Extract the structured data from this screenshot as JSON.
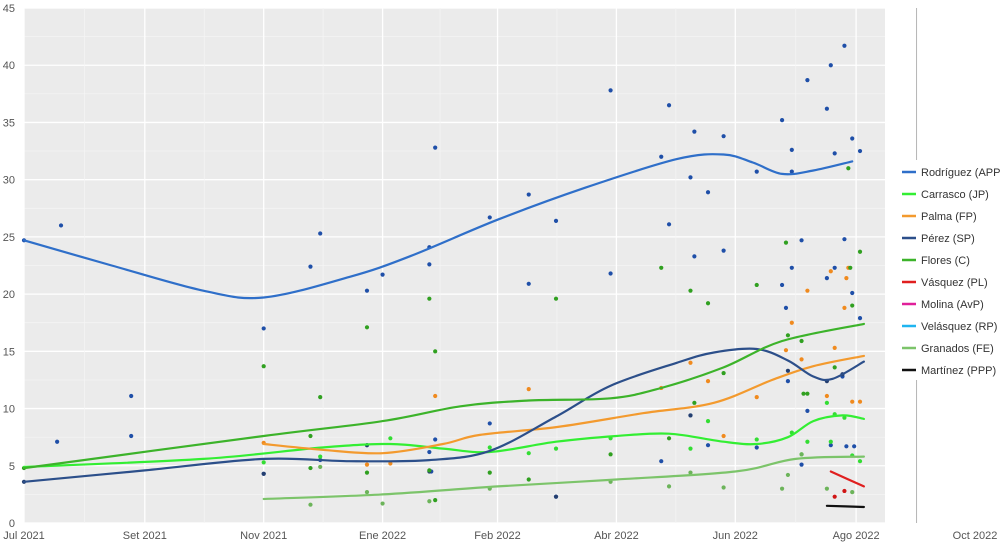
{
  "chart_data": {
    "type": "scatter",
    "title": "",
    "xlabel": "",
    "ylabel": "",
    "ylim": [
      0,
      45
    ],
    "xlim": [
      "2021-07-01",
      "2022-10-01"
    ],
    "grid": true,
    "legend_position": "right",
    "x_tick_labels": [
      "Jul 2021",
      "Set 2021",
      "Nov 2021",
      "Ene 2022",
      "Feb 2022",
      "Abr 2022",
      "Jun 2022",
      "Ago 2022",
      "Oct 2022"
    ],
    "x_tick_dates": [
      "2021-07-01",
      "2021-09-01",
      "2021-11-01",
      "2022-01-01",
      "2022-03-01",
      "2022-05-01",
      "2022-07-01",
      "2022-09-01",
      "2022-11-01"
    ],
    "y_tick_labels": [
      "0",
      "5",
      "10",
      "15",
      "20",
      "25",
      "30",
      "35",
      "40",
      "45"
    ],
    "y_ticks": [
      0,
      5,
      10,
      15,
      20,
      25,
      30,
      35,
      40,
      45
    ],
    "reference_line_date": "2022-10-02",
    "series": [
      {
        "name": "Rodríguez (APP)",
        "color": "#2f6fc9",
        "dot_color": "#1f4fa8",
        "trend": [
          [
            "2021-07-01",
            24.7
          ],
          [
            "2021-08-15",
            22.5
          ],
          [
            "2021-10-01",
            20.3
          ],
          [
            "2021-11-01",
            19.7
          ],
          [
            "2021-12-15",
            21.5
          ],
          [
            "2022-01-15",
            23.3
          ],
          [
            "2022-03-01",
            26.5
          ],
          [
            "2022-04-15",
            29.3
          ],
          [
            "2022-06-01",
            31.8
          ],
          [
            "2022-06-25",
            32.2
          ],
          [
            "2022-07-10",
            31.5
          ],
          [
            "2022-07-25",
            30.5
          ],
          [
            "2022-08-10",
            30.8
          ],
          [
            "2022-08-30",
            31.6
          ]
        ],
        "points": [
          [
            "2021-07-01",
            24.7
          ],
          [
            "2021-07-20",
            26.0
          ],
          [
            "2021-07-18",
            7.1
          ],
          [
            "2021-08-25",
            11.1
          ],
          [
            "2021-08-25",
            7.6
          ],
          [
            "2021-11-01",
            17.0
          ],
          [
            "2021-11-01",
            4.3
          ],
          [
            "2021-11-25",
            22.4
          ],
          [
            "2021-11-30",
            25.3
          ],
          [
            "2021-11-30",
            5.5
          ],
          [
            "2021-12-24",
            20.3
          ],
          [
            "2021-12-24",
            6.8
          ],
          [
            "2022-01-01",
            21.7
          ],
          [
            "2022-01-25",
            24.1
          ],
          [
            "2022-01-25",
            22.6
          ],
          [
            "2022-01-25",
            6.2
          ],
          [
            "2022-01-28",
            32.8
          ],
          [
            "2022-01-28",
            7.3
          ],
          [
            "2022-01-26",
            4.5
          ],
          [
            "2022-02-25",
            8.7
          ],
          [
            "2022-02-25",
            26.7
          ],
          [
            "2022-03-17",
            28.7
          ],
          [
            "2022-03-17",
            20.9
          ],
          [
            "2022-03-31",
            26.4
          ],
          [
            "2022-03-31",
            2.3
          ],
          [
            "2022-04-28",
            37.8
          ],
          [
            "2022-04-28",
            21.8
          ],
          [
            "2022-05-24",
            32.0
          ],
          [
            "2022-05-24",
            5.4
          ],
          [
            "2022-05-28",
            36.5
          ],
          [
            "2022-05-28",
            26.1
          ],
          [
            "2022-06-08",
            30.2
          ],
          [
            "2022-06-08",
            9.4
          ],
          [
            "2022-06-10",
            34.2
          ],
          [
            "2022-06-10",
            23.3
          ],
          [
            "2022-06-17",
            28.9
          ],
          [
            "2022-06-17",
            6.8
          ],
          [
            "2022-06-25",
            33.8
          ],
          [
            "2022-06-25",
            23.8
          ],
          [
            "2022-07-12",
            30.7
          ],
          [
            "2022-07-12",
            6.6
          ],
          [
            "2022-07-25",
            35.2
          ],
          [
            "2022-07-25",
            20.8
          ],
          [
            "2022-07-27",
            18.8
          ],
          [
            "2022-07-28",
            12.4
          ],
          [
            "2022-07-30",
            32.6
          ],
          [
            "2022-07-30",
            30.7
          ],
          [
            "2022-07-30",
            22.3
          ],
          [
            "2022-08-04",
            24.7
          ],
          [
            "2022-08-04",
            5.1
          ],
          [
            "2022-08-07",
            38.7
          ],
          [
            "2022-08-07",
            9.8
          ],
          [
            "2022-08-17",
            36.2
          ],
          [
            "2022-08-17",
            21.4
          ],
          [
            "2022-08-19",
            40.0
          ],
          [
            "2022-08-19",
            6.8
          ],
          [
            "2022-08-21",
            32.3
          ],
          [
            "2022-08-21",
            22.3
          ],
          [
            "2022-08-25",
            12.8
          ],
          [
            "2022-08-26",
            41.7
          ],
          [
            "2022-08-26",
            24.8
          ],
          [
            "2022-08-27",
            6.7
          ],
          [
            "2022-08-30",
            33.6
          ],
          [
            "2022-08-30",
            20.1
          ],
          [
            "2022-08-31",
            6.7
          ],
          [
            "2022-09-03",
            32.5
          ],
          [
            "2022-09-03",
            17.9
          ]
        ]
      },
      {
        "name": "Carrasco (JP)",
        "color": "#33ee33",
        "dot_color": "#33dd33",
        "trend": [
          [
            "2021-07-01",
            4.9
          ],
          [
            "2021-10-01",
            5.6
          ],
          [
            "2021-12-01",
            6.6
          ],
          [
            "2022-01-05",
            6.9
          ],
          [
            "2022-02-01",
            6.5
          ],
          [
            "2022-02-25",
            6.2
          ],
          [
            "2022-03-31",
            7.1
          ],
          [
            "2022-05-01",
            7.6
          ],
          [
            "2022-05-28",
            7.8
          ],
          [
            "2022-06-25",
            7.1
          ],
          [
            "2022-07-12",
            6.9
          ],
          [
            "2022-07-28",
            7.5
          ],
          [
            "2022-08-10",
            8.9
          ],
          [
            "2022-08-25",
            9.4
          ],
          [
            "2022-09-05",
            9.1
          ]
        ],
        "points": [
          [
            "2021-11-01",
            5.3
          ],
          [
            "2021-11-30",
            5.8
          ],
          [
            "2022-01-05",
            7.4
          ],
          [
            "2022-02-25",
            6.6
          ],
          [
            "2022-03-17",
            6.1
          ],
          [
            "2022-03-31",
            6.5
          ],
          [
            "2022-04-28",
            7.4
          ],
          [
            "2022-06-08",
            6.5
          ],
          [
            "2022-06-17",
            8.9
          ],
          [
            "2022-07-12",
            7.3
          ],
          [
            "2022-07-30",
            7.9
          ],
          [
            "2022-08-04",
            6.0
          ],
          [
            "2022-08-07",
            7.1
          ],
          [
            "2022-08-17",
            10.5
          ],
          [
            "2022-08-19",
            7.1
          ],
          [
            "2022-08-21",
            9.5
          ],
          [
            "2022-08-26",
            9.2
          ],
          [
            "2022-08-30",
            5.9
          ],
          [
            "2022-09-03",
            5.4
          ]
        ]
      },
      {
        "name": "Palma (FP)",
        "color": "#f39a2e",
        "dot_color": "#f08a1e",
        "trend": [
          [
            "2021-11-01",
            6.9
          ],
          [
            "2021-12-01",
            6.4
          ],
          [
            "2022-01-01",
            6.1
          ],
          [
            "2022-02-01",
            6.9
          ],
          [
            "2022-02-20",
            7.7
          ],
          [
            "2022-04-01",
            8.4
          ],
          [
            "2022-05-15",
            9.6
          ],
          [
            "2022-06-20",
            10.5
          ],
          [
            "2022-07-20",
            12.5
          ],
          [
            "2022-08-10",
            13.7
          ],
          [
            "2022-09-05",
            14.6
          ]
        ],
        "points": [
          [
            "2021-11-01",
            7.0
          ],
          [
            "2021-12-24",
            5.1
          ],
          [
            "2022-01-05",
            5.2
          ],
          [
            "2022-01-28",
            11.1
          ],
          [
            "2022-03-17",
            11.7
          ],
          [
            "2022-05-24",
            11.8
          ],
          [
            "2022-06-08",
            14.0
          ],
          [
            "2022-06-17",
            12.4
          ],
          [
            "2022-06-25",
            7.6
          ],
          [
            "2022-07-12",
            11.0
          ],
          [
            "2022-07-27",
            15.1
          ],
          [
            "2022-07-30",
            17.5
          ],
          [
            "2022-08-04",
            14.3
          ],
          [
            "2022-08-07",
            20.3
          ],
          [
            "2022-08-17",
            11.1
          ],
          [
            "2022-08-19",
            22.0
          ],
          [
            "2022-08-21",
            15.3
          ],
          [
            "2022-08-26",
            18.8
          ],
          [
            "2022-08-27",
            21.4
          ],
          [
            "2022-08-28",
            22.3
          ],
          [
            "2022-08-30",
            10.6
          ],
          [
            "2022-09-03",
            10.6
          ]
        ]
      },
      {
        "name": "Pérez (SP)",
        "color": "#2c4f8a",
        "dot_color": "#243f70",
        "trend": [
          [
            "2021-07-01",
            3.6
          ],
          [
            "2021-09-01",
            4.6
          ],
          [
            "2021-11-01",
            5.6
          ],
          [
            "2021-12-15",
            5.4
          ],
          [
            "2022-01-25",
            5.5
          ],
          [
            "2022-02-25",
            6.3
          ],
          [
            "2022-03-31",
            9.3
          ],
          [
            "2022-04-28",
            12.0
          ],
          [
            "2022-06-01",
            14.0
          ],
          [
            "2022-06-20",
            14.9
          ],
          [
            "2022-07-12",
            15.2
          ],
          [
            "2022-07-28",
            14.2
          ],
          [
            "2022-08-10",
            12.8
          ],
          [
            "2022-08-20",
            12.6
          ],
          [
            "2022-09-05",
            14.1
          ]
        ],
        "points": [
          [
            "2021-07-01",
            3.6
          ],
          [
            "2021-11-01",
            4.3
          ],
          [
            "2021-12-24",
            6.8
          ],
          [
            "2022-01-25",
            4.5
          ],
          [
            "2022-03-31",
            2.3
          ],
          [
            "2022-06-08",
            9.4
          ],
          [
            "2022-07-28",
            13.3
          ],
          [
            "2022-08-17",
            12.4
          ],
          [
            "2022-08-25",
            13.0
          ]
        ]
      },
      {
        "name": "Flores (C)",
        "color": "#3cb32a",
        "dot_color": "#30a020",
        "trend": [
          [
            "2021-07-01",
            4.8
          ],
          [
            "2021-11-01",
            7.6
          ],
          [
            "2022-01-01",
            8.9
          ],
          [
            "2022-02-10",
            10.2
          ],
          [
            "2022-03-17",
            10.7
          ],
          [
            "2022-04-28",
            10.9
          ],
          [
            "2022-05-24",
            11.8
          ],
          [
            "2022-06-25",
            13.6
          ],
          [
            "2022-07-25",
            15.9
          ],
          [
            "2022-09-05",
            17.4
          ]
        ],
        "points": [
          [
            "2021-07-01",
            4.8
          ],
          [
            "2021-11-01",
            13.7
          ],
          [
            "2021-11-25",
            7.6
          ],
          [
            "2021-11-30",
            11.0
          ],
          [
            "2021-11-25",
            4.8
          ],
          [
            "2021-12-24",
            17.1
          ],
          [
            "2021-12-24",
            4.4
          ],
          [
            "2022-01-25",
            19.6
          ],
          [
            "2022-01-25",
            4.6
          ],
          [
            "2022-01-28",
            15.0
          ],
          [
            "2022-01-28",
            2.0
          ],
          [
            "2022-02-25",
            4.4
          ],
          [
            "2022-03-17",
            3.8
          ],
          [
            "2022-03-31",
            19.6
          ],
          [
            "2022-04-28",
            6.0
          ],
          [
            "2022-05-24",
            22.3
          ],
          [
            "2022-05-28",
            7.4
          ],
          [
            "2022-06-08",
            20.3
          ],
          [
            "2022-06-10",
            10.5
          ],
          [
            "2022-06-17",
            19.2
          ],
          [
            "2022-06-25",
            13.1
          ],
          [
            "2022-07-12",
            20.8
          ],
          [
            "2022-07-27",
            24.5
          ],
          [
            "2022-07-28",
            16.4
          ],
          [
            "2022-08-04",
            15.9
          ],
          [
            "2022-08-05",
            11.3
          ],
          [
            "2022-08-07",
            11.3
          ],
          [
            "2022-08-21",
            13.6
          ],
          [
            "2022-08-28",
            31.0
          ],
          [
            "2022-08-29",
            22.3
          ],
          [
            "2022-08-30",
            19.0
          ],
          [
            "2022-09-03",
            23.7
          ]
        ]
      },
      {
        "name": "Vásquez (PL)",
        "color": "#e01f1f",
        "dot_color": "#d01515",
        "trend": [
          [
            "2022-08-19",
            4.5
          ],
          [
            "2022-09-05",
            3.2
          ]
        ],
        "points": [
          [
            "2022-08-21",
            2.3
          ],
          [
            "2022-08-26",
            2.8
          ]
        ]
      },
      {
        "name": "Molina (AvP)",
        "color": "#e0209a",
        "dot_color": "#d0108a",
        "trend": [],
        "points": []
      },
      {
        "name": "Velásquez (RP)",
        "color": "#1fb5f0",
        "dot_color": "#10a5e0",
        "trend": [],
        "points": []
      },
      {
        "name": "Granados (FE)",
        "color": "#7cc46a",
        "dot_color": "#6cb45a",
        "trend": [
          [
            "2021-11-01",
            2.1
          ],
          [
            "2022-01-01",
            2.5
          ],
          [
            "2022-03-01",
            3.2
          ],
          [
            "2022-05-01",
            3.8
          ],
          [
            "2022-07-01",
            4.5
          ],
          [
            "2022-08-01",
            5.6
          ],
          [
            "2022-09-05",
            5.8
          ]
        ],
        "points": [
          [
            "2021-11-25",
            1.6
          ],
          [
            "2021-11-30",
            4.9
          ],
          [
            "2021-12-24",
            2.7
          ],
          [
            "2022-01-01",
            1.7
          ],
          [
            "2022-01-25",
            1.9
          ],
          [
            "2022-02-25",
            3.0
          ],
          [
            "2022-04-28",
            3.6
          ],
          [
            "2022-05-28",
            3.2
          ],
          [
            "2022-06-08",
            4.4
          ],
          [
            "2022-06-25",
            3.1
          ],
          [
            "2022-07-25",
            3.0
          ],
          [
            "2022-07-28",
            4.2
          ],
          [
            "2022-08-04",
            6.0
          ],
          [
            "2022-08-17",
            3.0
          ],
          [
            "2022-08-30",
            2.7
          ]
        ]
      },
      {
        "name": "Martínez (PPP)",
        "color": "#111111",
        "dot_color": "#111111",
        "trend": [
          [
            "2022-08-17",
            1.5
          ],
          [
            "2022-09-05",
            1.4
          ]
        ],
        "points": []
      }
    ]
  }
}
